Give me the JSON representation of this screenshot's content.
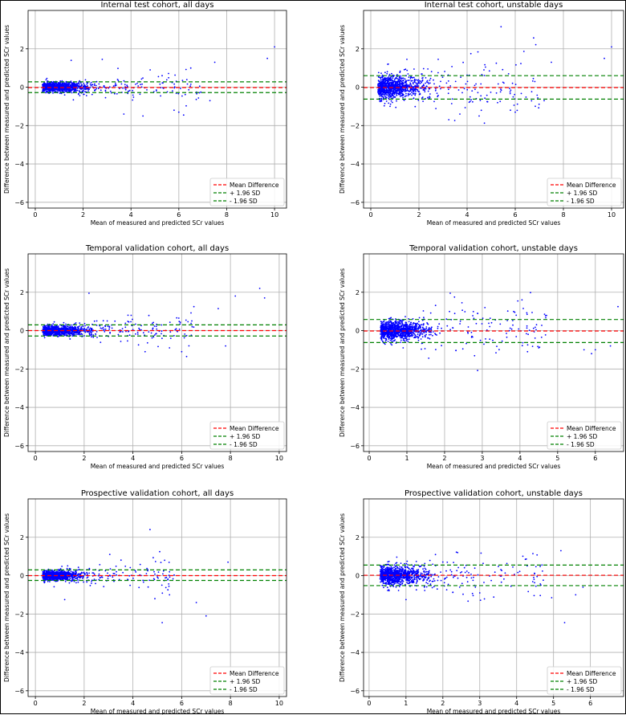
{
  "colors": {
    "points": "#0000ff",
    "mean_line": "#ff0000",
    "sd_lines": "#008000",
    "grid": "#b0b0b0",
    "axes": "#000000"
  },
  "legend_labels": [
    "Mean Difference",
    "+ 1.96 SD",
    "- 1.96 SD"
  ],
  "chart_data": [
    {
      "type": "scatter",
      "title": "Internal test cohort, all days",
      "xlabel": "Mean of measured and predicted SCr values",
      "ylabel": "Difference between measured and predicted SCr values",
      "xlim": [
        -0.3,
        10.5
      ],
      "ylim": [
        -6.3,
        4.0
      ],
      "xticks": [
        0,
        2,
        4,
        6,
        8,
        10
      ],
      "yticks": [
        -6,
        -4,
        -2,
        0,
        2
      ],
      "mean": -0.02,
      "upper_sd": 0.28,
      "lower_sd": -0.28,
      "legend_position": "lower right",
      "grid": true,
      "x_max_points": 10.0,
      "dense_spread": 0.15,
      "outliers": [
        [
          1.5,
          1.4
        ],
        [
          2.8,
          1.45
        ],
        [
          4.8,
          0.9
        ],
        [
          5.3,
          0.6
        ],
        [
          6.5,
          1.0
        ],
        [
          7.5,
          1.3
        ],
        [
          9.7,
          1.5
        ],
        [
          10.0,
          2.1
        ],
        [
          6.0,
          -1.3
        ],
        [
          4.5,
          -1.5
        ],
        [
          5.8,
          -1.2
        ],
        [
          3.7,
          -1.4
        ],
        [
          7.3,
          -0.7
        ],
        [
          6.2,
          -1.45
        ]
      ]
    },
    {
      "type": "scatter",
      "title": "Internal test cohort, unstable days",
      "xlabel": "Mean of measured and predicted SCr values",
      "ylabel": "Difference between measured and predicted SCr values",
      "xlim": [
        -0.3,
        10.5
      ],
      "ylim": [
        -6.3,
        4.0
      ],
      "xticks": [
        0,
        2,
        4,
        6,
        8,
        10
      ],
      "yticks": [
        -6,
        -4,
        -2,
        0,
        2
      ],
      "mean": -0.02,
      "upper_sd": 0.6,
      "lower_sd": -0.62,
      "legend_position": "lower right",
      "grid": true,
      "x_max_points": 10.0,
      "dense_spread": 0.35,
      "outliers": [
        [
          1.5,
          1.45
        ],
        [
          2.8,
          1.45
        ],
        [
          4.7,
          0.9
        ],
        [
          7.5,
          1.3
        ],
        [
          9.7,
          1.5
        ],
        [
          10.0,
          2.1
        ],
        [
          6.0,
          -1.3
        ],
        [
          4.5,
          -1.5
        ],
        [
          5.8,
          -1.2
        ],
        [
          3.7,
          -1.4
        ],
        [
          7.2,
          -0.7
        ],
        [
          0.8,
          -1.0
        ]
      ]
    },
    {
      "type": "scatter",
      "title": "Temporal validation cohort, all days",
      "xlabel": "Mean of measured and predicted SCr values",
      "ylabel": "Difference between measured and predicted SCr values",
      "xlim": [
        -0.3,
        10.3
      ],
      "ylim": [
        -6.3,
        4.0
      ],
      "xticks": [
        0,
        2,
        4,
        6,
        8,
        10
      ],
      "yticks": [
        -6,
        -4,
        -2,
        0,
        2
      ],
      "mean": 0.0,
      "upper_sd": 0.3,
      "lower_sd": -0.28,
      "legend_position": "lower right",
      "grid": true,
      "x_max_points": 9.3,
      "dense_spread": 0.15,
      "outliers": [
        [
          2.2,
          1.95
        ],
        [
          6.5,
          1.25
        ],
        [
          7.5,
          1.15
        ],
        [
          8.2,
          1.8
        ],
        [
          9.2,
          2.2
        ],
        [
          9.4,
          1.7
        ],
        [
          6.2,
          -1.35
        ],
        [
          6.0,
          -1.1
        ],
        [
          5.5,
          -0.9
        ],
        [
          4.5,
          -1.1
        ],
        [
          7.8,
          -0.8
        ],
        [
          3.8,
          0.8
        ]
      ]
    },
    {
      "type": "scatter",
      "title": "Temporal validation cohort, unstable days",
      "xlabel": "Mean of measured and predicted SCr values",
      "ylabel": "Difference between measured and predicted SCr values",
      "xlim": [
        -0.15,
        6.75
      ],
      "ylim": [
        -6.3,
        4.0
      ],
      "xticks": [
        0,
        1,
        2,
        3,
        4,
        5,
        6
      ],
      "yticks": [
        -6,
        -4,
        -2,
        0,
        2
      ],
      "mean": -0.02,
      "upper_sd": 0.58,
      "lower_sd": -0.62,
      "legend_position": "lower right",
      "grid": true,
      "x_max_points": 6.6,
      "dense_spread": 0.3,
      "outliers": [
        [
          2.15,
          1.95
        ],
        [
          6.6,
          1.25
        ],
        [
          3.9,
          0.8
        ],
        [
          5.9,
          -1.2
        ],
        [
          6.0,
          -1.0
        ],
        [
          5.7,
          -1.0
        ],
        [
          4.2,
          -1.1
        ],
        [
          4.5,
          -0.9
        ],
        [
          0.9,
          -0.9
        ],
        [
          6.4,
          -0.8
        ]
      ]
    },
    {
      "type": "scatter",
      "title": "Prospective validation cohort, all days",
      "xlabel": "Mean of measured and predicted SCr values",
      "ylabel": "Difference between measured and predicted SCr values",
      "xlim": [
        -0.3,
        10.3
      ],
      "ylim": [
        -6.3,
        4.0
      ],
      "xticks": [
        0,
        2,
        4,
        6,
        8,
        10
      ],
      "yticks": [
        -6,
        -4,
        -2,
        0,
        2
      ],
      "mean": 0.0,
      "upper_sd": 0.3,
      "lower_sd": -0.25,
      "legend_position": "lower right",
      "grid": true,
      "x_max_points": 8.0,
      "dense_spread": 0.15,
      "outliers": [
        [
          4.7,
          2.4
        ],
        [
          5.1,
          1.25
        ],
        [
          5.3,
          0.8
        ],
        [
          7.9,
          0.7
        ],
        [
          5.2,
          -2.45
        ],
        [
          6.6,
          -1.4
        ],
        [
          7.0,
          -2.1
        ],
        [
          5.5,
          -1.0
        ],
        [
          1.2,
          -1.25
        ],
        [
          4.9,
          -1.2
        ]
      ]
    },
    {
      "type": "scatter",
      "title": "Prospective validation cohort, unstable days",
      "xlabel": "Mean of measured and predicted SCr values",
      "ylabel": "Difference between measured and predicted SCr values",
      "xlim": [
        -0.15,
        6.9
      ],
      "ylim": [
        -6.3,
        4.0
      ],
      "xticks": [
        0,
        1,
        2,
        3,
        4,
        5,
        6
      ],
      "yticks": [
        -6,
        -4,
        -2,
        0,
        2
      ],
      "mean": 0.02,
      "upper_sd": 0.55,
      "lower_sd": -0.52,
      "legend_position": "lower right",
      "grid": true,
      "x_max_points": 6.5,
      "dense_spread": 0.28,
      "outliers": [
        [
          2.4,
          1.2
        ],
        [
          1.8,
          1.1
        ],
        [
          5.2,
          1.3
        ],
        [
          5.3,
          -2.45
        ],
        [
          4.95,
          -1.15
        ],
        [
          5.6,
          -1.0
        ],
        [
          1.0,
          -1.25
        ],
        [
          3.0,
          -0.9
        ],
        [
          5.8,
          -0.6
        ]
      ]
    }
  ]
}
